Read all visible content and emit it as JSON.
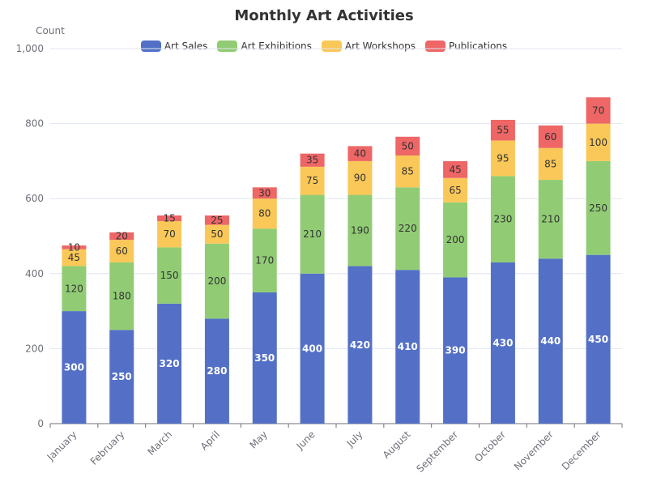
{
  "chart_data": {
    "type": "bar",
    "stacked": true,
    "title": "Monthly Art Activities",
    "ylabel": "Count",
    "xlabel": "",
    "ylim": [
      0,
      1000
    ],
    "yticks": [
      "0",
      "200",
      "400",
      "600",
      "800",
      "1,000"
    ],
    "categories": [
      "January",
      "February",
      "March",
      "April",
      "May",
      "June",
      "July",
      "August",
      "September",
      "October",
      "November",
      "December"
    ],
    "series": [
      {
        "name": "Art Sales",
        "color": "#5470c6",
        "label_color": "#ffffff",
        "values": [
          300,
          250,
          320,
          280,
          350,
          400,
          420,
          410,
          390,
          430,
          440,
          450
        ]
      },
      {
        "name": "Art Exhibitions",
        "color": "#91cc75",
        "label_color": "#333333",
        "values": [
          120,
          180,
          150,
          200,
          170,
          210,
          190,
          220,
          200,
          230,
          210,
          250
        ]
      },
      {
        "name": "Art Workshops",
        "color": "#fac858",
        "label_color": "#333333",
        "values": [
          45,
          60,
          70,
          50,
          80,
          75,
          90,
          85,
          65,
          95,
          85,
          100
        ]
      },
      {
        "name": "Publications",
        "color": "#ee6666",
        "label_color": "#333333",
        "values": [
          10,
          20,
          15,
          25,
          30,
          35,
          40,
          50,
          45,
          55,
          60,
          70
        ]
      }
    ],
    "legend_position": "top-center",
    "grid": true
  }
}
